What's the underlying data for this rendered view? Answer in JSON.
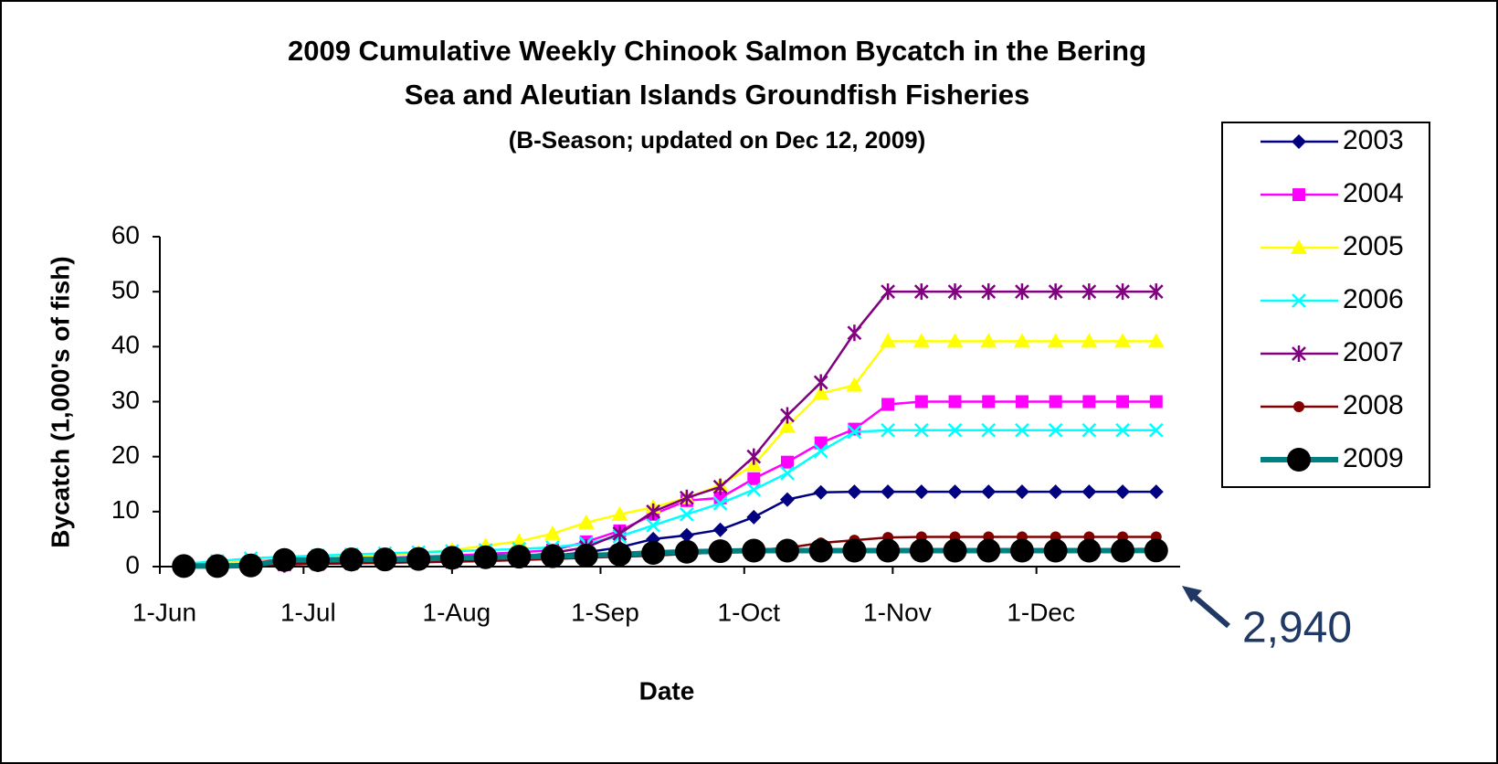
{
  "chart_data": {
    "type": "line",
    "title": [
      "2009 Cumulative Weekly Chinook Salmon Bycatch in the Bering",
      "Sea and Aleutian Islands Groundfish Fisheries",
      "(B-Season; updated on Dec 12, 2009)"
    ],
    "x_label": "Date",
    "y_label": "Bycatch (1,000's of fish)",
    "annotation": "2,940",
    "x": [
      "06-06",
      "06-13",
      "06-20",
      "06-27",
      "07-04",
      "07-11",
      "07-18",
      "07-25",
      "08-01",
      "08-08",
      "08-15",
      "08-22",
      "08-29",
      "09-05",
      "09-12",
      "09-19",
      "09-26",
      "10-03",
      "10-10",
      "10-17",
      "10-24",
      "10-31",
      "11-07",
      "11-14",
      "11-21",
      "11-28",
      "12-05",
      "12-12",
      "12-19",
      "12-26"
    ],
    "xlim": [
      "06-01",
      "12-31"
    ],
    "xticks": [
      {
        "value": "06-01",
        "label": "1-Jun"
      },
      {
        "value": "07-01",
        "label": "1-Jul"
      },
      {
        "value": "08-01",
        "label": "1-Aug"
      },
      {
        "value": "09-01",
        "label": "1-Sep"
      },
      {
        "value": "10-01",
        "label": "1-Oct"
      },
      {
        "value": "11-01",
        "label": "1-Nov"
      },
      {
        "value": "12-01",
        "label": "1-Dec"
      }
    ],
    "ylim": [
      0,
      60
    ],
    "yticks": [
      0,
      10,
      20,
      30,
      40,
      50,
      60
    ],
    "grid": false,
    "legend": "right",
    "series": [
      {
        "name": "2003",
        "color": "#000080",
        "marker": "diamond",
        "values": [
          0.1,
          0.3,
          0.5,
          0.7,
          0.9,
          1.0,
          1.1,
          1.2,
          1.3,
          1.5,
          1.7,
          2.0,
          2.6,
          3.5,
          5.0,
          5.7,
          6.7,
          9.0,
          12.2,
          13.5,
          13.6,
          13.6,
          13.6,
          13.6,
          13.6,
          13.6,
          13.6,
          13.6,
          13.6,
          13.6
        ]
      },
      {
        "name": "2004",
        "color": "#ff00ff",
        "marker": "square",
        "values": [
          0.2,
          0.5,
          1.0,
          1.2,
          1.4,
          1.5,
          1.6,
          1.8,
          2.0,
          2.3,
          2.6,
          3.0,
          4.5,
          6.5,
          9.5,
          12.0,
          12.5,
          16.0,
          19.0,
          22.5,
          25.0,
          29.5,
          30.0,
          30.0,
          30.0,
          30.0,
          30.0,
          30.0,
          30.0,
          30.0
        ]
      },
      {
        "name": "2005",
        "color": "#ffff00",
        "marker": "triangle",
        "values": [
          0.3,
          0.6,
          0.9,
          1.2,
          1.5,
          1.8,
          2.1,
          2.5,
          3.0,
          3.8,
          4.6,
          6.0,
          8.0,
          9.5,
          10.8,
          12.5,
          14.8,
          18.5,
          25.5,
          31.5,
          33.0,
          41.0,
          41.0,
          41.0,
          41.0,
          41.0,
          41.0,
          41.0,
          41.0,
          41.0
        ]
      },
      {
        "name": "2006",
        "color": "#00ffff",
        "marker": "x",
        "values": [
          0.5,
          1.0,
          1.5,
          1.8,
          2.0,
          2.2,
          2.4,
          2.6,
          2.8,
          3.0,
          3.2,
          3.5,
          4.2,
          5.5,
          7.5,
          9.5,
          11.5,
          14.0,
          17.0,
          21.0,
          24.5,
          24.8,
          24.8,
          24.8,
          24.8,
          24.8,
          24.8,
          24.8,
          24.8,
          24.8
        ]
      },
      {
        "name": "2007",
        "color": "#800080",
        "marker": "star",
        "values": [
          0.1,
          0.2,
          0.3,
          0.4,
          0.5,
          0.6,
          0.7,
          0.8,
          0.9,
          1.2,
          1.8,
          2.5,
          3.5,
          6.0,
          10.0,
          12.5,
          14.5,
          20.0,
          27.5,
          33.5,
          42.5,
          50.0,
          50.0,
          50.0,
          50.0,
          50.0,
          50.0,
          50.0,
          50.0,
          50.0
        ]
      },
      {
        "name": "2008",
        "color": "#800000",
        "marker": "circle",
        "values": [
          0.1,
          0.2,
          0.3,
          0.4,
          0.5,
          0.6,
          0.7,
          0.8,
          0.9,
          1.0,
          1.2,
          1.4,
          1.6,
          1.8,
          2.0,
          2.3,
          2.6,
          3.0,
          3.4,
          4.3,
          4.8,
          5.3,
          5.4,
          5.4,
          5.4,
          5.4,
          5.4,
          5.4,
          5.4,
          5.4
        ]
      },
      {
        "name": "2009",
        "color": "#008080",
        "marker": "bigcircle",
        "values": [
          0.1,
          0.1,
          0.2,
          1.2,
          1.2,
          1.3,
          1.3,
          1.4,
          1.6,
          1.7,
          1.8,
          1.9,
          2.0,
          2.2,
          2.5,
          2.7,
          2.8,
          2.9,
          2.9,
          2.9,
          2.9,
          2.9,
          2.9,
          2.9,
          2.9,
          2.9,
          2.9,
          2.9,
          2.9,
          2.94
        ]
      }
    ]
  }
}
